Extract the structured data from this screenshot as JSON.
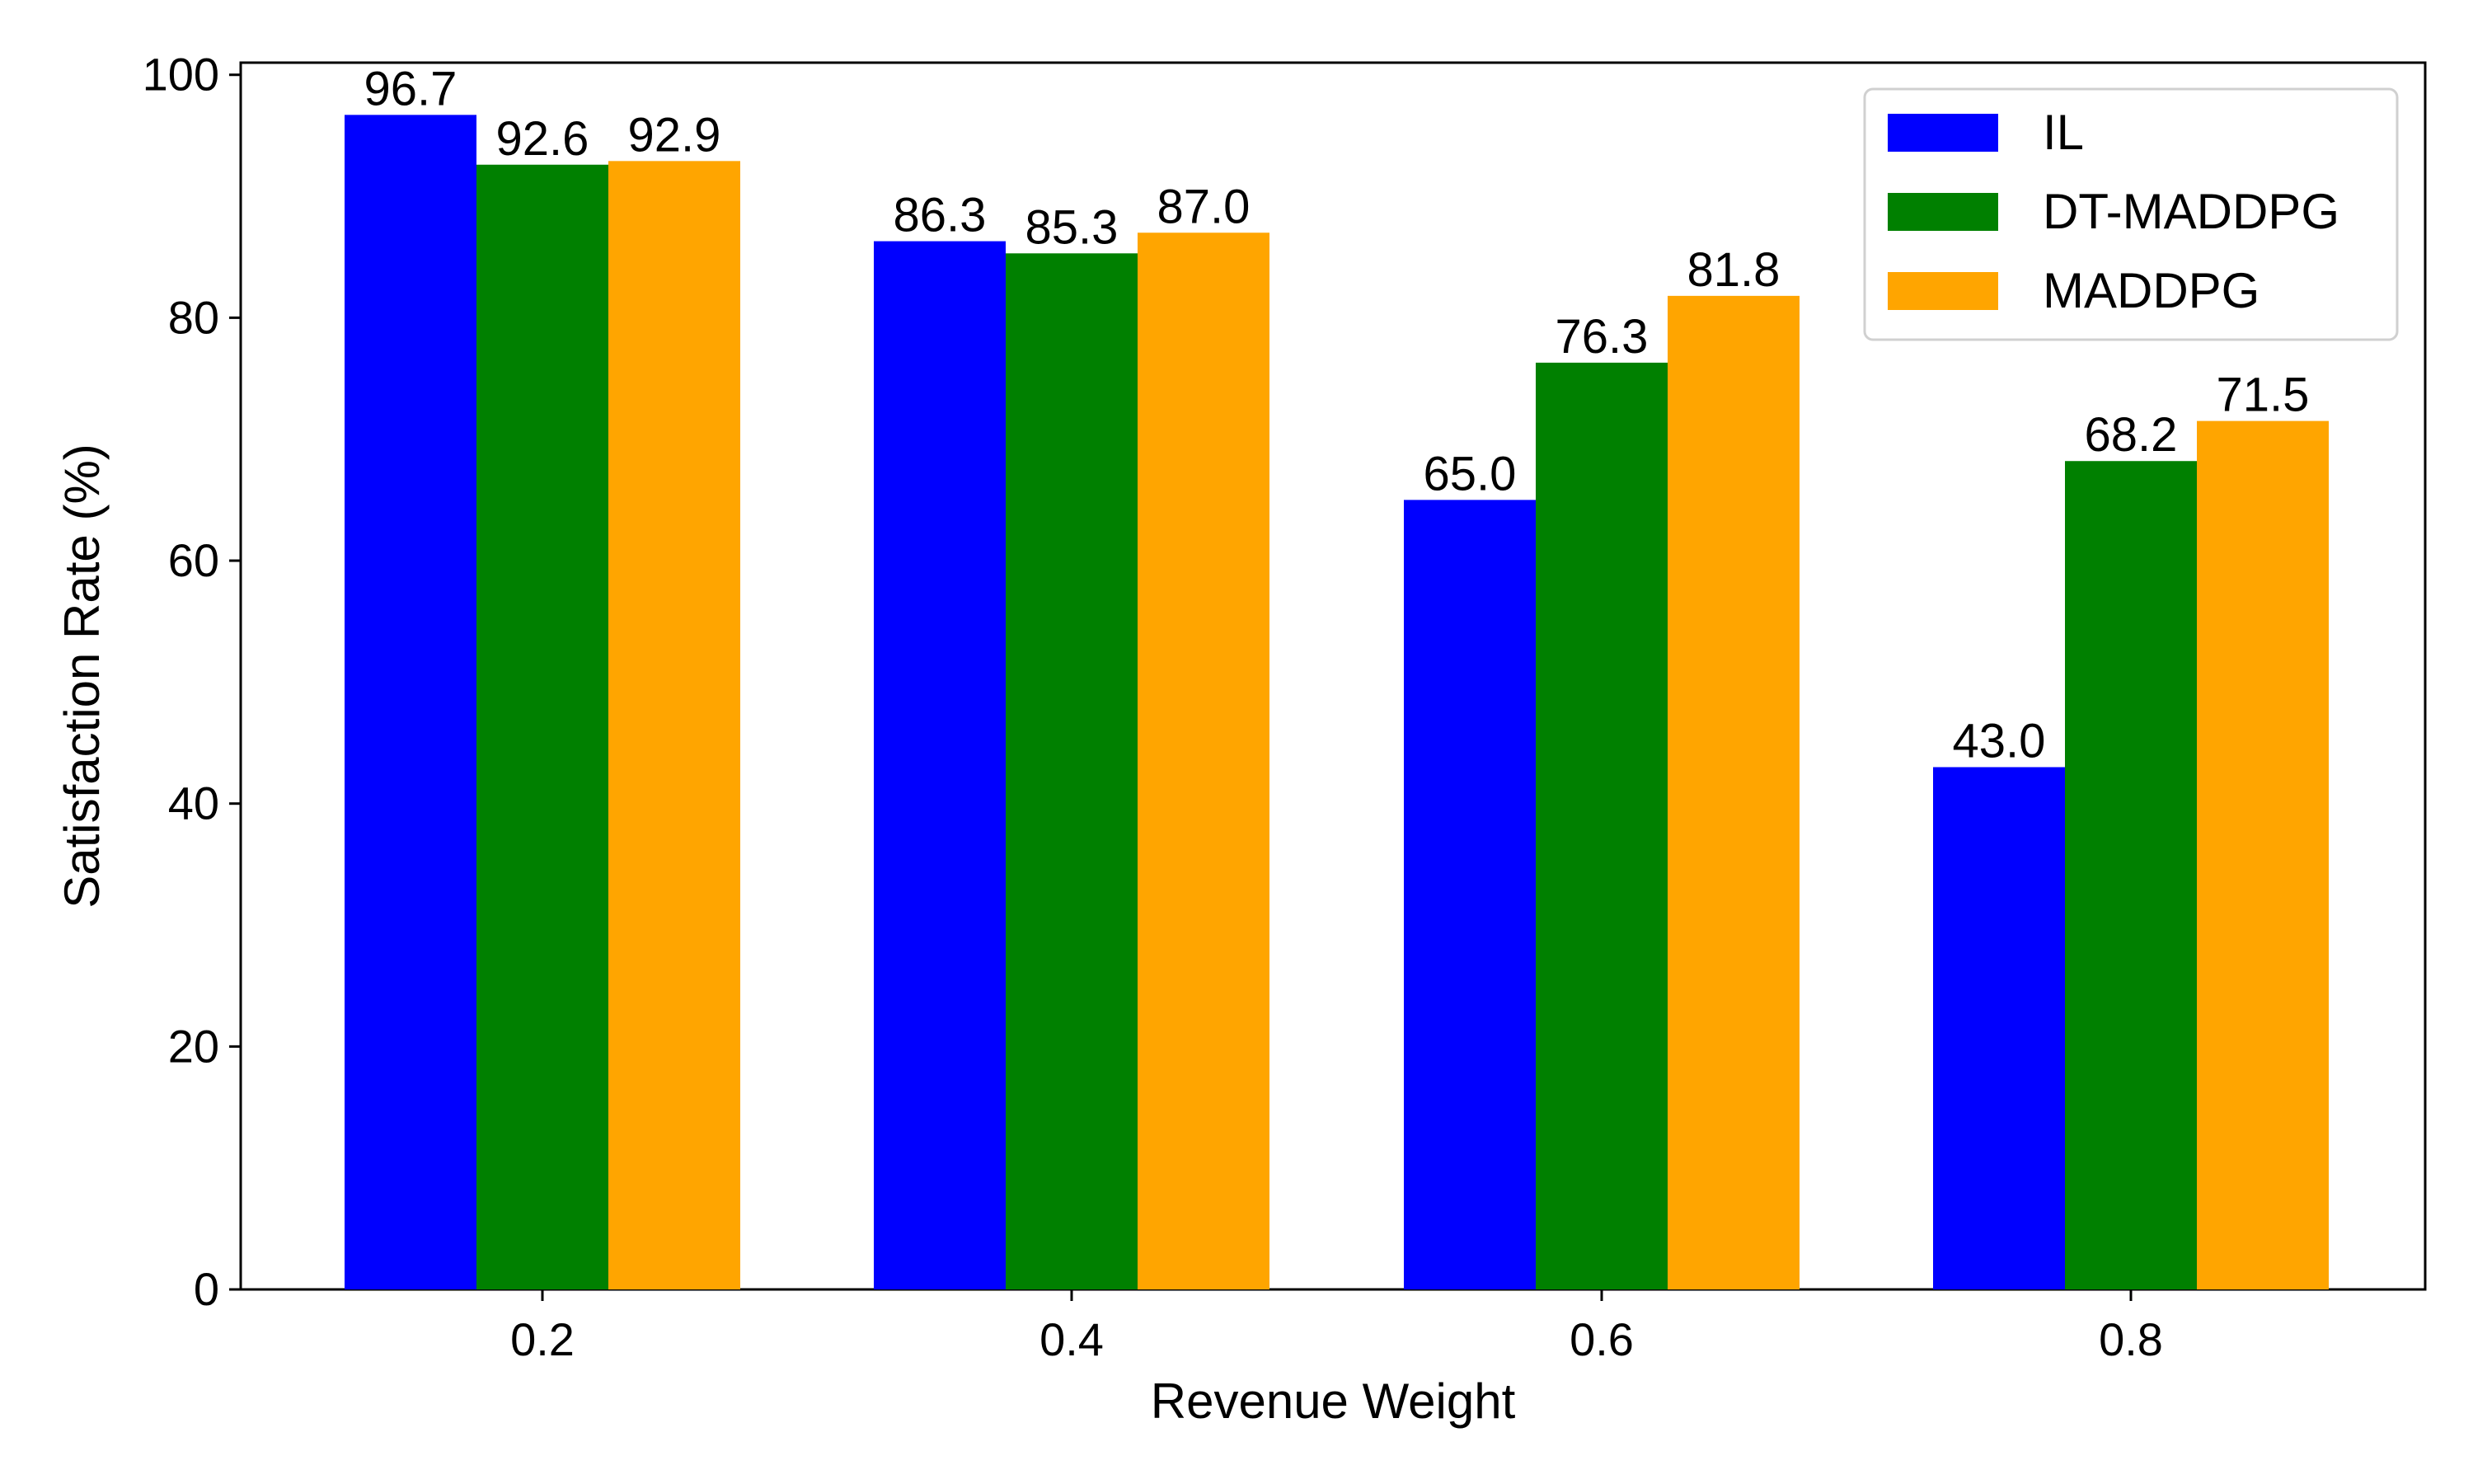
{
  "chart_data": {
    "type": "bar",
    "title": "",
    "xlabel": "Revenue Weight",
    "ylabel": "Satisfaction Rate (%)",
    "categories": [
      "0.2",
      "0.4",
      "0.6",
      "0.8"
    ],
    "ylim": [
      0,
      101
    ],
    "yticks": [
      0,
      20,
      40,
      60,
      80,
      100
    ],
    "ytick_labels": [
      "0",
      "20",
      "40",
      "60",
      "80",
      "100"
    ],
    "grid": false,
    "legend_position": "top-right",
    "series": [
      {
        "name": "IL",
        "color": "#0000ff",
        "values": [
          96.7,
          86.3,
          65.0,
          43.0
        ],
        "labels": [
          "96.7",
          "86.3",
          "65.0",
          "43.0"
        ]
      },
      {
        "name": "DT-MADDPG",
        "color": "#008000",
        "values": [
          92.6,
          85.3,
          76.3,
          68.2
        ],
        "labels": [
          "92.6",
          "85.3",
          "76.3",
          "68.2"
        ]
      },
      {
        "name": "MADDPG",
        "color": "#ffa500",
        "values": [
          92.9,
          87.0,
          81.8,
          71.5
        ],
        "labels": [
          "92.9",
          "87.0",
          "81.8",
          "71.5"
        ]
      }
    ]
  }
}
